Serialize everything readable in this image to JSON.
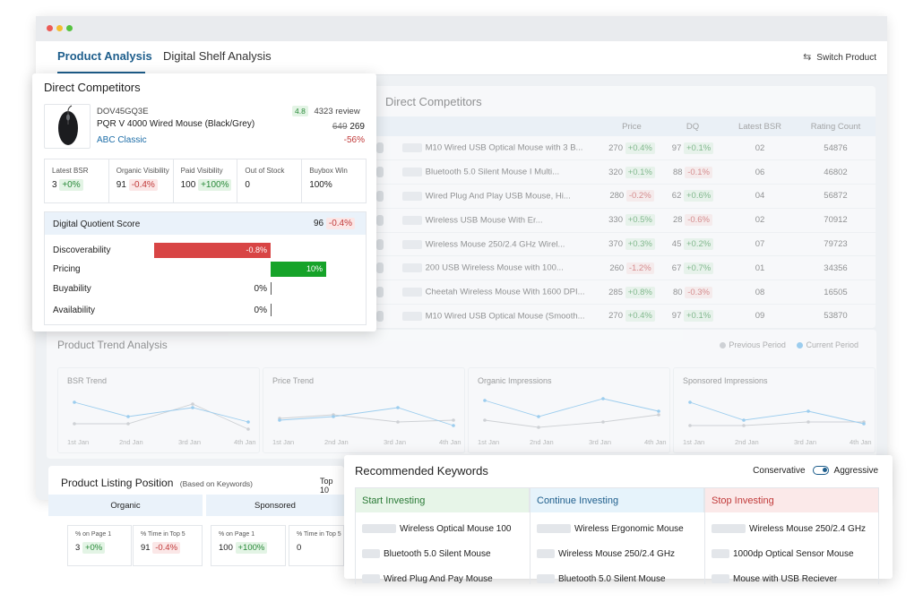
{
  "tabs": [
    "Product Analysis",
    "Digital Shelf Analysis"
  ],
  "switch_product": "Switch Product",
  "bg_competitors": {
    "title": "Direct Competitors",
    "columns": [
      "Price",
      "DQ",
      "Latest BSR",
      "Rating Count"
    ],
    "rows": [
      {
        "name": "M10 Wired USB Optical Mouse with 3 B...",
        "price": "270",
        "price_delta": "+0.4%",
        "dq": "97",
        "dq_delta": "+0.1%",
        "bsr": "02",
        "rating": "54876"
      },
      {
        "name": "Bluetooth 5.0 Silent Mouse I Multi...",
        "price": "320",
        "price_delta": "+0.1%",
        "dq": "88",
        "dq_delta": "-0.1%",
        "bsr": "06",
        "rating": "46802"
      },
      {
        "name": "Wired Plug And Play USB Mouse, Hi...",
        "price": "280",
        "price_delta": "-0.2%",
        "dq": "62",
        "dq_delta": "+0.6%",
        "bsr": "04",
        "rating": "56872"
      },
      {
        "name": "Wireless USB Mouse With Er...",
        "price": "330",
        "price_delta": "+0.5%",
        "dq": "28",
        "dq_delta": "-0.6%",
        "bsr": "02",
        "rating": "70912"
      },
      {
        "name": "Wireless Mouse 250/2.4 GHz Wirel...",
        "price": "370",
        "price_delta": "+0.3%",
        "dq": "45",
        "dq_delta": "+0.2%",
        "bsr": "07",
        "rating": "79723"
      },
      {
        "name": "200 USB Wireless Mouse with 100...",
        "price": "260",
        "price_delta": "-1.2%",
        "dq": "67",
        "dq_delta": "+0.7%",
        "bsr": "01",
        "rating": "34356"
      },
      {
        "name": "Cheetah Wireless Mouse With 1600 DPI...",
        "price": "285",
        "price_delta": "+0.8%",
        "dq": "80",
        "dq_delta": "-0.3%",
        "bsr": "08",
        "rating": "16505"
      },
      {
        "name": "M10 Wired USB Optical Mouse (Smooth...",
        "price": "270",
        "price_delta": "+0.4%",
        "dq": "97",
        "dq_delta": "+0.1%",
        "bsr": "09",
        "rating": "53870"
      }
    ]
  },
  "trend": {
    "title": "Product Trend Analysis",
    "legend_previous": "Previous Period",
    "legend_current": "Current Period",
    "charts": [
      {
        "title": "BSR Trend",
        "dates": [
          "1st Jan",
          "2nd Jan",
          "3rd Jan",
          "4th Jan"
        ]
      },
      {
        "title": "Price Trend",
        "dates": [
          "1st Jan",
          "2nd Jan",
          "3rd Jan",
          "4th Jan"
        ]
      },
      {
        "title": "Organic Impressions",
        "dates": [
          "1st Jan",
          "2nd Jan",
          "3rd Jan",
          "4th Jan"
        ]
      },
      {
        "title": "Sponsored Impressions",
        "dates": [
          "1st Jan",
          "2nd Jan",
          "3rd Jan",
          "4th Jan"
        ]
      }
    ]
  },
  "listing": {
    "title": "Product Listing Position",
    "subtitle": "(Based on Keywords)",
    "top_label": "Top 10",
    "organic_label": "Organic",
    "sponsored_label": "Sponsored",
    "organic_page1_label": "% on Page 1",
    "organic_page1_value": "3",
    "organic_page1_delta": "+0%",
    "organic_top5_label": "% Time in Top 5",
    "organic_top5_value": "91",
    "organic_top5_delta": "-0.4%",
    "sponsored_page1_label": "% on Page 1",
    "sponsored_page1_value": "100",
    "sponsored_page1_delta": "+100%",
    "sponsored_top5_label": "% Time in Top 5",
    "sponsored_top5_value": "0"
  },
  "dc": {
    "title": "Direct Competitors",
    "sku": "DOV45GQ3E",
    "product_name": "PQR V 4000 Wired Mouse (Black/Grey)",
    "brand": "ABC Classic",
    "rating": "4.8",
    "reviews": "4323 review",
    "old_price": "649",
    "price": "269",
    "discount": "-56%",
    "metrics": [
      {
        "label": "Latest BSR",
        "value": "3",
        "delta": "+0%"
      },
      {
        "label": "Organic Visibility",
        "value": "91",
        "delta": "-0.4%"
      },
      {
        "label": "Paid Visibility",
        "value": "100",
        "delta": "+100%"
      },
      {
        "label": "Out of Stock",
        "value": "0",
        "delta": ""
      },
      {
        "label": "Buybox Win",
        "value": "100%",
        "delta": ""
      }
    ],
    "dq_label": "Digital Quotient Score",
    "dq_value": "96",
    "dq_delta": "-0.4%",
    "dq_rows": [
      {
        "label": "Discoverability",
        "value": "-0.8%"
      },
      {
        "label": "Pricing",
        "value": "10%"
      },
      {
        "label": "Buyability",
        "value": "0%"
      },
      {
        "label": "Availability",
        "value": "0%"
      }
    ]
  },
  "keywords": {
    "title": "Recommended Keywords",
    "mode_left": "Conservative",
    "mode_right": "Aggressive",
    "columns": [
      "Start Investing",
      "Continue Investing",
      "Stop Investing"
    ],
    "start": [
      "Wireless Optical Mouse 100",
      "Bluetooth 5.0 Silent Mouse",
      "Wired Plug And Pay Mouse"
    ],
    "continue": [
      "Wireless Ergonomic Mouse",
      "Wireless Mouse 250/2.4 GHz",
      "Bluetooth 5.0 Silent Mouse"
    ],
    "stop": [
      "Wireless Mouse 250/2.4 GHz",
      "1000dp Optical Sensor Mouse",
      "Mouse with USB Reciever"
    ]
  },
  "colors": {
    "accent": "#1e5e8c",
    "previous": "#b5b8bc",
    "current": "#5ab0ea",
    "negative_bar": "#d84545",
    "positive_bar": "#16a329",
    "start_bg": "#e7f5e8",
    "continue_bg": "#e6f3fb",
    "stop_bg": "#fbe9e9"
  }
}
